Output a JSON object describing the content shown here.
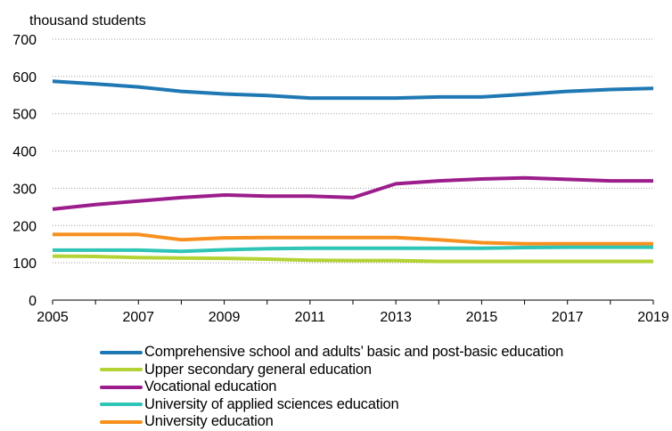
{
  "chart_data": {
    "type": "line",
    "title": "",
    "ylabel": "thousand students",
    "xlabel": "",
    "xlim": [
      2005,
      2019
    ],
    "ylim": [
      0,
      700
    ],
    "x_ticks": [
      "2005",
      "2007",
      "2009",
      "2011",
      "2013",
      "2015",
      "2017",
      "2019"
    ],
    "y_ticks": [
      "0",
      "100",
      "200",
      "300",
      "400",
      "500",
      "600",
      "700"
    ],
    "grid": "horizontal dotted",
    "legend_position": "bottom",
    "x": [
      2005,
      2006,
      2007,
      2008,
      2009,
      2010,
      2011,
      2012,
      2013,
      2014,
      2015,
      2016,
      2017,
      2018,
      2019
    ],
    "series": [
      {
        "name": "Comprehensive school and adults’ basic and post-basic education",
        "color": "#1f78b4",
        "values": [
          587,
          580,
          572,
          560,
          553,
          549,
          542,
          542,
          542,
          545,
          545,
          552,
          560,
          565,
          568
        ]
      },
      {
        "name": "Upper secondary  general education",
        "color": "#b3d334",
        "values": [
          118,
          117,
          114,
          113,
          112,
          110,
          107,
          106,
          106,
          104,
          104,
          104,
          104,
          104,
          104
        ]
      },
      {
        "name": "Vocational education",
        "color": "#9c1d8c",
        "values": [
          244,
          256,
          266,
          275,
          282,
          279,
          279,
          275,
          312,
          320,
          325,
          328,
          324,
          320,
          320
        ]
      },
      {
        "name": "University of applied sciences education",
        "color": "#2ec4b6",
        "values": [
          134,
          134,
          134,
          131,
          135,
          138,
          139,
          139,
          139,
          139,
          139,
          141,
          142,
          142,
          142
        ]
      },
      {
        "name": "University education",
        "color": "#f7901e",
        "values": [
          176,
          176,
          176,
          162,
          167,
          168,
          168,
          168,
          168,
          162,
          154,
          151,
          151,
          151,
          151
        ]
      }
    ]
  }
}
